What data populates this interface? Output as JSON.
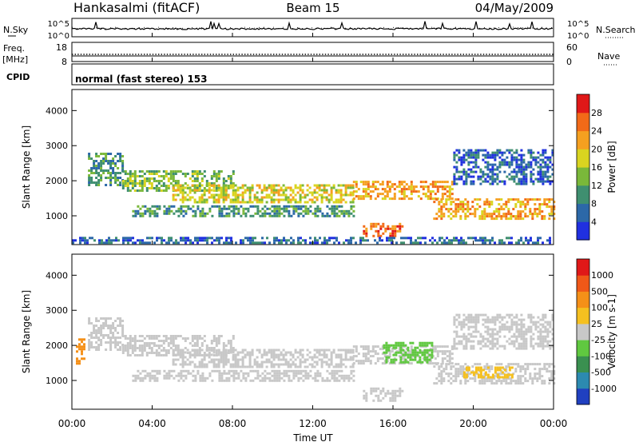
{
  "header": {
    "station": "Hankasalmi (fitACF)",
    "beam": "Beam 15",
    "date": "04/May/2009"
  },
  "noise_panel": {
    "left_label": "N.Sky",
    "right_label": "N.Search",
    "ticks": [
      "10^5",
      "10^0"
    ]
  },
  "freq_panel": {
    "left_label": "Freq.",
    "left_unit": "[MHz]",
    "left_ticks": [
      "18",
      "8"
    ],
    "right_label": "Nave",
    "right_ticks": [
      "60",
      "0"
    ]
  },
  "cpid_panel": {
    "label": "CPID",
    "mode": "normal (fast stereo) 153"
  },
  "x_axis": {
    "label": "Time UT",
    "ticks": [
      "00:00",
      "04:00",
      "08:00",
      "12:00",
      "16:00",
      "20:00",
      "00:00"
    ]
  },
  "chart_data": [
    {
      "type": "heatmap",
      "ylabel": "Slant Range [km]",
      "ylim": [
        180,
        4600
      ],
      "y_ticks": [
        1000,
        2000,
        3000,
        4000
      ],
      "xlim": [
        0,
        24
      ],
      "colorbar": {
        "label": "Power [dB]",
        "ticks": [
          "4",
          "8",
          "12",
          "16",
          "20",
          "24",
          "28"
        ],
        "colors": [
          "#2030e0",
          "#2c68a8",
          "#3f8f70",
          "#7ab83a",
          "#d9d420",
          "#f5a020",
          "#f26a18",
          "#e01818"
        ]
      },
      "echo_regions": [
        {
          "t0": 0.8,
          "t1": 2.5,
          "r0": 1900,
          "r1": 2800,
          "level": 2
        },
        {
          "t0": 2.5,
          "t1": 8,
          "r0": 1700,
          "r1": 2300,
          "level": 3
        },
        {
          "t0": 5,
          "t1": 14,
          "r0": 1400,
          "r1": 1900,
          "level": 4
        },
        {
          "t0": 14,
          "t1": 19,
          "r0": 1500,
          "r1": 2000,
          "level": 5
        },
        {
          "t0": 18,
          "t1": 24,
          "r0": 900,
          "r1": 1500,
          "level": 5
        },
        {
          "t0": 3,
          "t1": 14,
          "r0": 1000,
          "r1": 1300,
          "level": 2
        },
        {
          "t0": 14.5,
          "t1": 16.5,
          "r0": 400,
          "r1": 800,
          "level": 6
        },
        {
          "t0": 19,
          "t1": 24,
          "r0": 1900,
          "r1": 2900,
          "level": 1
        },
        {
          "t0": 0,
          "t1": 24,
          "r0": 200,
          "r1": 400,
          "level": 1
        }
      ]
    },
    {
      "type": "heatmap",
      "ylabel": "Slant Range [km]",
      "ylim": [
        180,
        4600
      ],
      "y_ticks": [
        1000,
        2000,
        3000,
        4000
      ],
      "xlim": [
        0,
        24
      ],
      "colorbar": {
        "label": "Velocity [m s-1]",
        "ticks": [
          "1000",
          "500",
          "100",
          "25",
          "-25",
          "-100",
          "-500",
          "-1000"
        ],
        "colors": [
          "#2040c0",
          "#2c8ab0",
          "#3a9050",
          "#60c840",
          "#c8c8c8",
          "#f5c020",
          "#f59018",
          "#f05818",
          "#e01818"
        ]
      },
      "echo_regions": [
        {
          "t0": 0.8,
          "t1": 2.5,
          "r0": 1900,
          "r1": 2800,
          "level": 4
        },
        {
          "t0": 2.5,
          "t1": 8,
          "r0": 1700,
          "r1": 2300,
          "level": 4
        },
        {
          "t0": 5,
          "t1": 14,
          "r0": 1400,
          "r1": 1900,
          "level": 4
        },
        {
          "t0": 14,
          "t1": 19,
          "r0": 1500,
          "r1": 2000,
          "level": 4
        },
        {
          "t0": 18,
          "t1": 24,
          "r0": 900,
          "r1": 1500,
          "level": 4
        },
        {
          "t0": 3,
          "t1": 14,
          "r0": 1000,
          "r1": 1300,
          "level": 4
        },
        {
          "t0": 14.5,
          "t1": 16.5,
          "r0": 400,
          "r1": 800,
          "level": 4
        },
        {
          "t0": 19,
          "t1": 24,
          "r0": 1900,
          "r1": 2900,
          "level": 4
        },
        {
          "t0": 15.5,
          "t1": 18,
          "r0": 1500,
          "r1": 2100,
          "level": 3
        },
        {
          "t0": 19.5,
          "t1": 22,
          "r0": 1100,
          "r1": 1400,
          "level": 5
        },
        {
          "t0": 0.2,
          "t1": 0.6,
          "r0": 1500,
          "r1": 2200,
          "level": 6
        }
      ]
    }
  ]
}
